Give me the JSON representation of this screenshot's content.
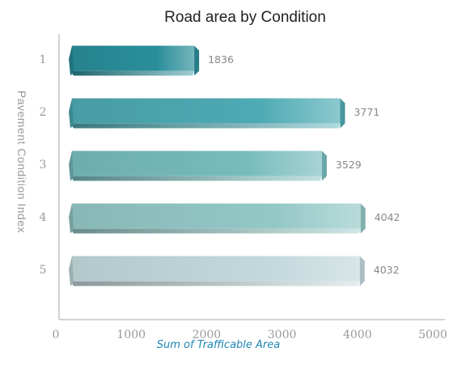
{
  "chart_data": {
    "type": "bar",
    "orientation": "horizontal",
    "title": "Road area by Condition",
    "xlabel": "Sum of Trafficable Area",
    "ylabel": "Pavement Condition Index",
    "categories": [
      "1",
      "2",
      "3",
      "4",
      "5"
    ],
    "values": [
      1836,
      3771,
      3529,
      4042,
      4032
    ],
    "data_labels": [
      "1836",
      "3771",
      "3529",
      "4042",
      "4032"
    ],
    "xlim": [
      0,
      5000
    ],
    "xticks": [
      "0",
      "1000",
      "2000",
      "3000",
      "4000",
      "5000"
    ],
    "grid": false,
    "legend": "none",
    "colors": [
      "#2a8e9a",
      "#4eaab3",
      "#78bcbe",
      "#93c8c6",
      "#c3d9dc"
    ]
  }
}
